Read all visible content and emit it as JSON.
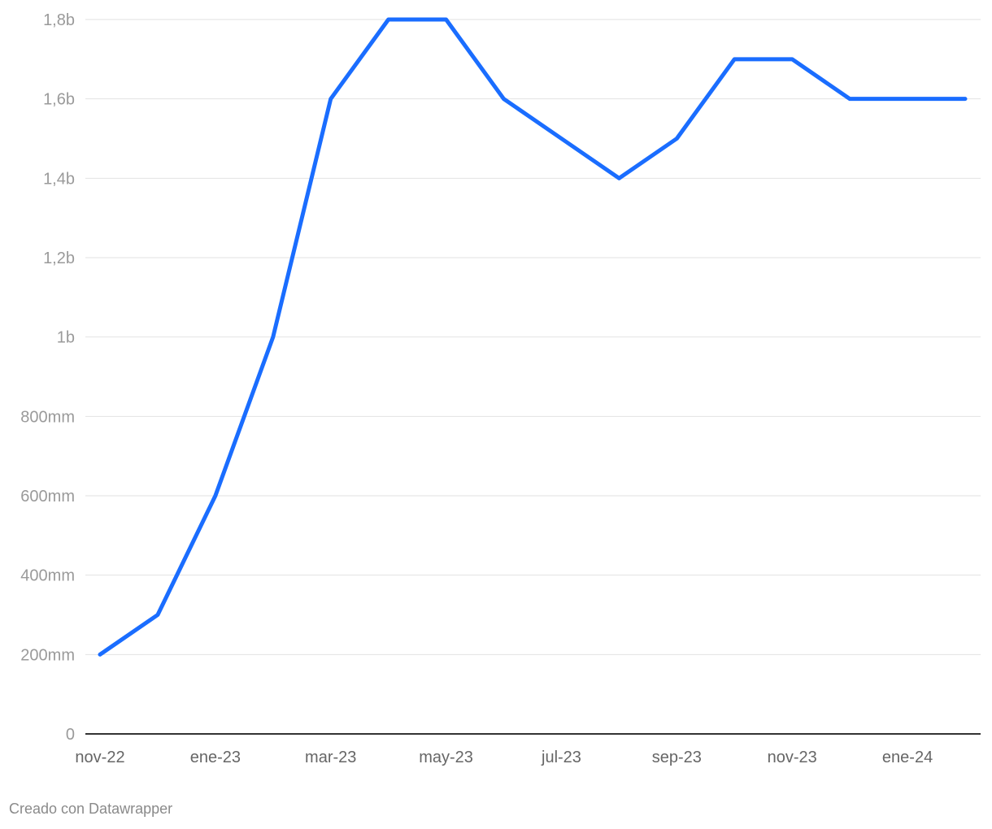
{
  "chart_data": {
    "type": "line",
    "title": "",
    "xlabel": "",
    "ylabel": "",
    "x": [
      "nov-22",
      "dic-22",
      "ene-23",
      "feb-23",
      "mar-23",
      "abr-23",
      "may-23",
      "jun-23",
      "jul-23",
      "ago-23",
      "sep-23",
      "oct-23",
      "nov-23",
      "dic-23",
      "ene-24",
      "feb-24"
    ],
    "series": [
      {
        "values": [
          200000000,
          300000000,
          600000000,
          1000000000,
          1600000000,
          1800000000,
          1800000000,
          1600000000,
          1500000000,
          1400000000,
          1500000000,
          1700000000,
          1700000000,
          1600000000,
          1600000000,
          1600000000
        ]
      }
    ],
    "ylim": [
      0,
      1800000000
    ],
    "yticks": [
      0,
      200000000,
      400000000,
      600000000,
      800000000,
      1000000000,
      1200000000,
      1400000000,
      1600000000,
      1800000000
    ],
    "ytick_labels": [
      "0",
      "200mm",
      "400mm",
      "600mm",
      "800mm",
      "1b",
      "1,2b",
      "1,4b",
      "1,6b",
      "1,8b"
    ],
    "xtick_indices": [
      0,
      2,
      4,
      6,
      8,
      10,
      12,
      14
    ],
    "xtick_labels": [
      "nov-22",
      "ene-23",
      "mar-23",
      "may-23",
      "jul-23",
      "sep-23",
      "nov-23",
      "ene-24"
    ],
    "grid": true,
    "line_color": "#1a6dff"
  },
  "footer": {
    "credit": "Creado con Datawrapper"
  }
}
